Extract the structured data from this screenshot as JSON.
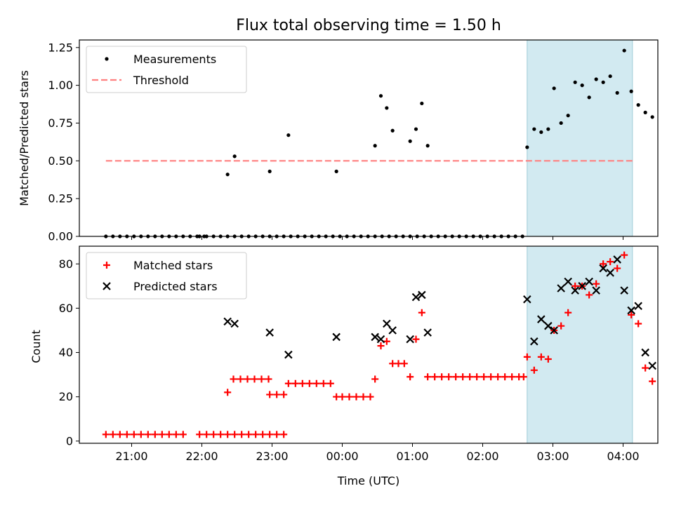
{
  "chart_data": [
    {
      "type": "scatter",
      "title": "Flux total observing time = 1.50 h",
      "xlabel": "",
      "ylabel": "Matched/Predicted stars",
      "ylim": [
        0,
        1.3
      ],
      "yticks": [
        "0.00",
        "0.25",
        "0.50",
        "0.75",
        "1.00",
        "1.25"
      ],
      "ytick_values": [
        0,
        0.25,
        0.5,
        0.75,
        1.0,
        1.25
      ],
      "x_time_range": [
        "20:30",
        "04:30"
      ],
      "shaded_span": [
        "02:38",
        "04:08"
      ],
      "legend_position": "top-left",
      "series": [
        {
          "name": "Measurements",
          "marker": "dot",
          "color": "#000000",
          "points": [
            [
              "20:38",
              0
            ],
            [
              "20:44",
              0
            ],
            [
              "20:50",
              0
            ],
            [
              "20:56",
              0
            ],
            [
              "21:02",
              0
            ],
            [
              "21:08",
              0
            ],
            [
              "21:14",
              0
            ],
            [
              "21:20",
              0
            ],
            [
              "21:26",
              0
            ],
            [
              "21:32",
              0
            ],
            [
              "21:38",
              0
            ],
            [
              "21:44",
              0
            ],
            [
              "21:58",
              0
            ],
            [
              "22:04",
              0
            ],
            [
              "22:10",
              0
            ],
            [
              "22:16",
              0
            ],
            [
              "22:22",
              0
            ],
            [
              "22:28",
              0
            ],
            [
              "22:34",
              0
            ],
            [
              "22:40",
              0
            ],
            [
              "22:46",
              0
            ],
            [
              "22:52",
              0
            ],
            [
              "22:58",
              0
            ],
            [
              "23:04",
              0
            ],
            [
              "23:10",
              0
            ],
            [
              "23:16",
              0
            ],
            [
              "23:22",
              0
            ],
            [
              "23:28",
              0
            ],
            [
              "23:34",
              0
            ],
            [
              "23:40",
              0
            ],
            [
              "23:46",
              0
            ],
            [
              "23:52",
              0
            ],
            [
              "23:58",
              0
            ],
            [
              "00:04",
              0
            ],
            [
              "00:10",
              0
            ],
            [
              "00:16",
              0
            ],
            [
              "00:22",
              0
            ],
            [
              "00:28",
              0
            ],
            [
              "00:34",
              0
            ],
            [
              "00:40",
              0
            ],
            [
              "00:46",
              0
            ],
            [
              "00:52",
              0
            ],
            [
              "00:58",
              0
            ],
            [
              "01:04",
              0
            ],
            [
              "01:10",
              0
            ],
            [
              "01:16",
              0
            ],
            [
              "01:22",
              0
            ],
            [
              "01:28",
              0
            ],
            [
              "01:34",
              0
            ],
            [
              "01:40",
              0
            ],
            [
              "01:46",
              0
            ],
            [
              "01:52",
              0
            ],
            [
              "01:58",
              0
            ],
            [
              "02:04",
              0
            ],
            [
              "02:10",
              0
            ],
            [
              "02:16",
              0
            ],
            [
              "02:22",
              0
            ],
            [
              "02:28",
              0
            ],
            [
              "02:34",
              0
            ],
            [
              "21:50",
              0
            ],
            [
              "21:56",
              0
            ],
            [
              "22:02",
              0
            ],
            [
              "22:22",
              0.41
            ],
            [
              "22:28",
              0.53
            ],
            [
              "22:58",
              0.43
            ],
            [
              "23:14",
              0.67
            ],
            [
              "23:55",
              0.43
            ],
            [
              "00:28",
              0.6
            ],
            [
              "00:33",
              0.93
            ],
            [
              "00:38",
              0.85
            ],
            [
              "00:43",
              0.7
            ],
            [
              "00:58",
              0.63
            ],
            [
              "01:03",
              0.71
            ],
            [
              "01:08",
              0.88
            ],
            [
              "01:13",
              0.6
            ],
            [
              "02:38",
              0.59
            ],
            [
              "02:44",
              0.71
            ],
            [
              "02:50",
              0.69
            ],
            [
              "02:56",
              0.71
            ],
            [
              "03:01",
              0.98
            ],
            [
              "03:07",
              0.75
            ],
            [
              "03:13",
              0.8
            ],
            [
              "03:19",
              1.02
            ],
            [
              "03:25",
              1.0
            ],
            [
              "03:31",
              0.92
            ],
            [
              "03:37",
              1.04
            ],
            [
              "03:43",
              1.02
            ],
            [
              "03:49",
              1.06
            ],
            [
              "03:55",
              0.95
            ],
            [
              "04:01",
              1.23
            ],
            [
              "04:07",
              0.96
            ],
            [
              "04:13",
              0.87
            ],
            [
              "04:19",
              0.82
            ],
            [
              "04:25",
              0.79
            ]
          ]
        },
        {
          "name": "Threshold",
          "marker": "dashed-line",
          "color": "#ff7f7f",
          "points": [
            [
              "20:38",
              0.5
            ],
            [
              "04:08",
              0.5
            ]
          ]
        }
      ]
    },
    {
      "type": "scatter",
      "title": "",
      "xlabel": "Time (UTC)",
      "ylabel": "Count",
      "ylim": [
        -1,
        88
      ],
      "yticks": [
        "0",
        "20",
        "40",
        "60",
        "80"
      ],
      "ytick_values": [
        0,
        20,
        40,
        60,
        80
      ],
      "xticks": [
        "21:00",
        "22:00",
        "23:00",
        "00:00",
        "01:00",
        "02:00",
        "03:00",
        "04:00"
      ],
      "x_time_range": [
        "20:30",
        "04:30"
      ],
      "shaded_span": [
        "02:38",
        "04:08"
      ],
      "legend_position": "top-left",
      "series": [
        {
          "name": "Matched stars",
          "marker": "plus",
          "color": "#ff0000",
          "points": [
            [
              "20:38",
              3
            ],
            [
              "20:44",
              3
            ],
            [
              "20:50",
              3
            ],
            [
              "20:56",
              3
            ],
            [
              "21:02",
              3
            ],
            [
              "21:08",
              3
            ],
            [
              "21:14",
              3
            ],
            [
              "21:20",
              3
            ],
            [
              "21:26",
              3
            ],
            [
              "21:32",
              3
            ],
            [
              "21:38",
              3
            ],
            [
              "21:44",
              3
            ],
            [
              "21:58",
              3
            ],
            [
              "22:04",
              3
            ],
            [
              "22:10",
              3
            ],
            [
              "22:16",
              3
            ],
            [
              "22:22",
              3
            ],
            [
              "22:28",
              3
            ],
            [
              "22:34",
              3
            ],
            [
              "22:40",
              3
            ],
            [
              "22:46",
              3
            ],
            [
              "22:52",
              3
            ],
            [
              "22:58",
              3
            ],
            [
              "23:04",
              3
            ],
            [
              "23:10",
              3
            ],
            [
              "22:22",
              22
            ],
            [
              "22:27",
              28
            ],
            [
              "22:33",
              28
            ],
            [
              "22:39",
              28
            ],
            [
              "22:45",
              28
            ],
            [
              "22:51",
              28
            ],
            [
              "22:57",
              28
            ],
            [
              "22:58",
              21
            ],
            [
              "23:04",
              21
            ],
            [
              "23:10",
              21
            ],
            [
              "23:14",
              26
            ],
            [
              "23:20",
              26
            ],
            [
              "23:26",
              26
            ],
            [
              "23:32",
              26
            ],
            [
              "23:38",
              26
            ],
            [
              "23:44",
              26
            ],
            [
              "23:50",
              26
            ],
            [
              "23:55",
              20
            ],
            [
              "00:00",
              20
            ],
            [
              "00:06",
              20
            ],
            [
              "00:12",
              20
            ],
            [
              "00:18",
              20
            ],
            [
              "00:24",
              20
            ],
            [
              "00:28",
              28
            ],
            [
              "00:33",
              43
            ],
            [
              "00:38",
              45
            ],
            [
              "00:43",
              35
            ],
            [
              "00:48",
              35
            ],
            [
              "00:53",
              35
            ],
            [
              "00:58",
              29
            ],
            [
              "01:03",
              46
            ],
            [
              "01:08",
              58
            ],
            [
              "01:13",
              29
            ],
            [
              "01:19",
              29
            ],
            [
              "01:25",
              29
            ],
            [
              "01:31",
              29
            ],
            [
              "01:37",
              29
            ],
            [
              "01:43",
              29
            ],
            [
              "01:49",
              29
            ],
            [
              "01:55",
              29
            ],
            [
              "02:01",
              29
            ],
            [
              "02:07",
              29
            ],
            [
              "02:13",
              29
            ],
            [
              "02:19",
              29
            ],
            [
              "02:25",
              29
            ],
            [
              "02:31",
              29
            ],
            [
              "02:35",
              29
            ],
            [
              "02:38",
              38
            ],
            [
              "02:44",
              32
            ],
            [
              "02:50",
              38
            ],
            [
              "02:56",
              37
            ],
            [
              "03:01",
              50
            ],
            [
              "03:07",
              52
            ],
            [
              "03:13",
              58
            ],
            [
              "03:19",
              70
            ],
            [
              "03:25",
              70
            ],
            [
              "03:31",
              66
            ],
            [
              "03:37",
              71
            ],
            [
              "03:43",
              80
            ],
            [
              "03:49",
              81
            ],
            [
              "03:55",
              78
            ],
            [
              "04:01",
              84
            ],
            [
              "04:07",
              57
            ],
            [
              "04:13",
              53
            ],
            [
              "04:19",
              33
            ],
            [
              "04:25",
              27
            ]
          ]
        },
        {
          "name": "Predicted stars",
          "marker": "x",
          "color": "#000000",
          "points": [
            [
              "22:22",
              54
            ],
            [
              "22:28",
              53
            ],
            [
              "22:58",
              49
            ],
            [
              "23:14",
              39
            ],
            [
              "23:55",
              47
            ],
            [
              "00:28",
              47
            ],
            [
              "00:33",
              46
            ],
            [
              "00:38",
              53
            ],
            [
              "00:43",
              50
            ],
            [
              "00:58",
              46
            ],
            [
              "01:03",
              65
            ],
            [
              "01:08",
              66
            ],
            [
              "01:13",
              49
            ],
            [
              "02:38",
              64
            ],
            [
              "02:44",
              45
            ],
            [
              "02:50",
              55
            ],
            [
              "02:56",
              52
            ],
            [
              "03:01",
              50
            ],
            [
              "03:07",
              69
            ],
            [
              "03:13",
              72
            ],
            [
              "03:19",
              68
            ],
            [
              "03:25",
              70
            ],
            [
              "03:31",
              72
            ],
            [
              "03:37",
              68
            ],
            [
              "03:43",
              78
            ],
            [
              "03:49",
              76
            ],
            [
              "03:55",
              82
            ],
            [
              "04:01",
              68
            ],
            [
              "04:07",
              59
            ],
            [
              "04:13",
              61
            ],
            [
              "04:19",
              40
            ],
            [
              "04:25",
              34
            ]
          ]
        }
      ]
    }
  ]
}
